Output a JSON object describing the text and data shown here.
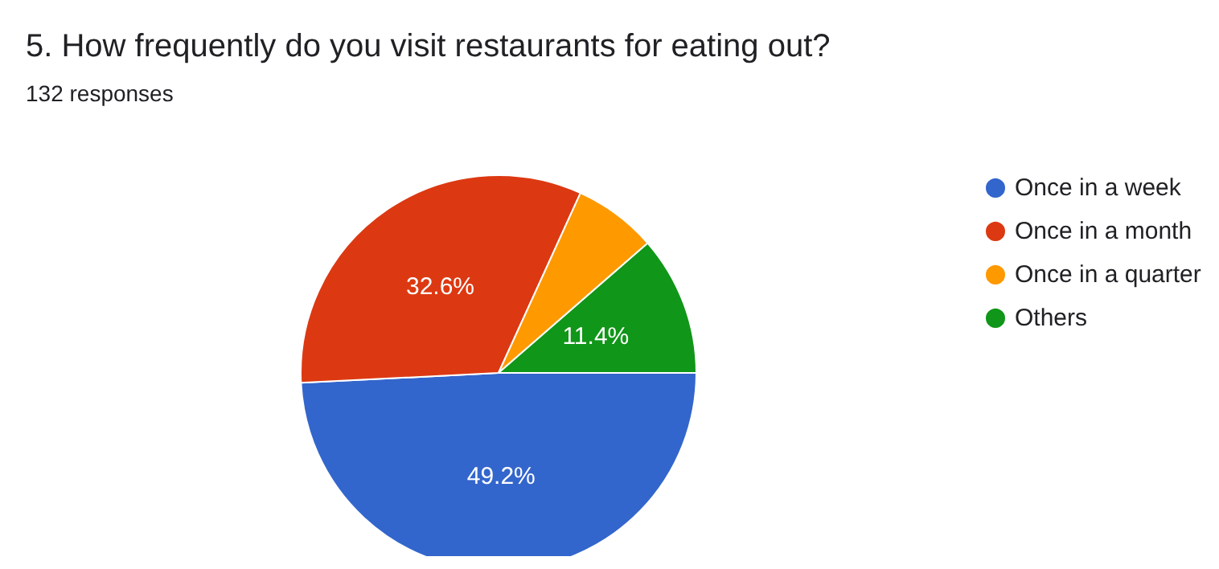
{
  "chart_data": {
    "type": "pie",
    "title": "5. How frequently do you visit restaurants for eating out?",
    "subtitle": "132 responses",
    "categories": [
      "Once in a week",
      "Once in a month",
      "Once in a quarter",
      "Others"
    ],
    "values": [
      49.2,
      32.6,
      6.8,
      11.4
    ],
    "colors": [
      "#3366cc",
      "#dc3912",
      "#ff9900",
      "#109618"
    ],
    "value_labels": [
      "49.2%",
      "32.6%",
      null,
      "11.4%"
    ],
    "legend": "right"
  }
}
